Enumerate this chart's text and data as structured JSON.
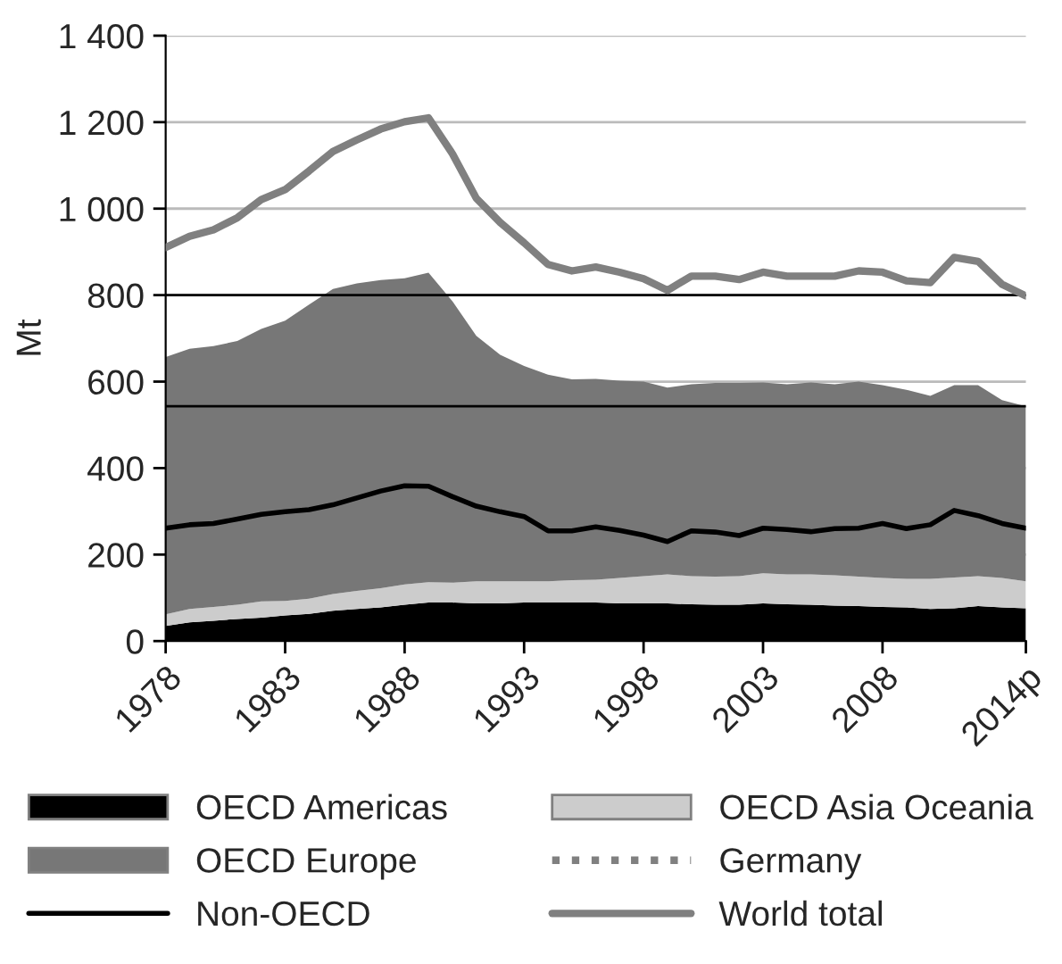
{
  "chart_data": {
    "type": "area",
    "stacked": true,
    "ylabel": "Mt",
    "categories": [
      "1978",
      null,
      null,
      null,
      null,
      "1983",
      null,
      null,
      null,
      null,
      "1988",
      null,
      null,
      null,
      null,
      "1993",
      null,
      null,
      null,
      null,
      "1998",
      null,
      null,
      null,
      null,
      "2003",
      null,
      null,
      null,
      null,
      "2008",
      null,
      null,
      null,
      null,
      null,
      "2014p"
    ],
    "series": [
      {
        "name": "OECD Americas",
        "color": "#000000",
        "values": [
          35,
          43,
          47,
          51,
          54,
          59,
          63,
          70,
          74,
          78,
          84,
          89,
          89,
          87,
          87,
          89,
          89,
          89,
          89,
          87,
          87,
          87,
          85,
          84,
          84,
          87,
          85,
          84,
          82,
          81,
          79,
          78,
          74,
          76,
          81,
          78,
          76
        ]
      },
      {
        "name": "OECD Asia Oceania",
        "color": "#cccccc",
        "values": [
          27,
          31,
          32,
          33,
          38,
          34,
          35,
          39,
          42,
          44,
          47,
          47,
          46,
          51,
          51,
          49,
          49,
          52,
          53,
          59,
          63,
          67,
          65,
          65,
          66,
          70,
          69,
          70,
          70,
          68,
          67,
          66,
          70,
          71,
          69,
          68,
          62
        ]
      },
      {
        "name": "OECD Europe",
        "color": "#777777",
        "values": [
          595,
          602,
          603,
          610,
          630,
          648,
          680,
          705,
          711,
          713,
          708,
          716,
          651,
          568,
          524,
          498,
          478,
          464,
          464,
          456,
          450,
          432,
          444,
          448,
          447,
          441,
          440,
          444,
          442,
          451,
          446,
          437,
          423,
          445,
          442,
          411,
          405
        ]
      },
      {
        "name": "Germany",
        "type": "line",
        "line_style": "dotted",
        "color": "#808080",
        "values": [
          null,
          null,
          null,
          null,
          null,
          null,
          null,
          null,
          null,
          null,
          null,
          null,
          null,
          null,
          null,
          null,
          null,
          null,
          null,
          null,
          null,
          null,
          null,
          null,
          null,
          null,
          null,
          null,
          null,
          null,
          null,
          null,
          null,
          null,
          null,
          null,
          null
        ]
      },
      {
        "name": "Non-OECD",
        "type": "line",
        "line_style": "solid",
        "color": "#000000",
        "values": [
          261,
          269,
          272,
          282,
          293,
          299,
          304,
          315,
          331,
          347,
          359,
          358,
          334,
          312,
          299,
          288,
          255,
          255,
          264,
          256,
          245,
          230,
          255,
          252,
          244,
          261,
          258,
          253,
          260,
          261,
          272,
          260,
          269,
          302,
          290,
          272,
          261
        ]
      },
      {
        "name": "World total",
        "type": "line",
        "line_style": "solid",
        "color": "#808080",
        "values": [
          910,
          936,
          951,
          979,
          1021,
          1044,
          1087,
          1132,
          1159,
          1184,
          1201,
          1210,
          1127,
          1024,
          968,
          921,
          871,
          856,
          865,
          853,
          838,
          811,
          844,
          844,
          836,
          853,
          844,
          844,
          844,
          856,
          853,
          833,
          829,
          887,
          878,
          825,
          798
        ]
      }
    ],
    "ylim": [
      0,
      1400
    ],
    "yticks": [
      0,
      200,
      400,
      600,
      800,
      {
        "value": 1000,
        "label": "1 000"
      },
      {
        "value": 1200,
        "label": "1 200"
      },
      {
        "value": 1400,
        "label": "1 400"
      }
    ],
    "ref_lines": [
      {
        "axis": "y",
        "value": 800,
        "color": "#000000"
      },
      {
        "axis": "y",
        "value": 543,
        "color": "#000000"
      }
    ],
    "grid": "y",
    "legend": "bottom"
  }
}
